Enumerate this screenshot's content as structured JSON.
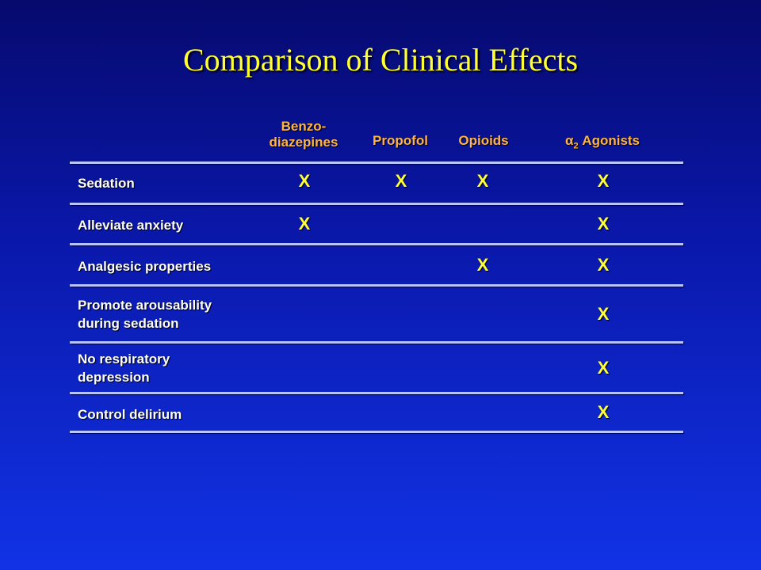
{
  "slide": {
    "title": "Comparison of Clinical Effects"
  },
  "columns": [
    {
      "lines": [
        "Benzo-",
        "diazepines"
      ]
    },
    {
      "lines": [
        "Propofol"
      ]
    },
    {
      "lines": [
        "Opioids"
      ]
    },
    {
      "symbol": "α",
      "subscript": "2",
      "suffix": " Agonists"
    }
  ],
  "rows": [
    {
      "lines": [
        "Sedation"
      ],
      "mark": "X",
      "checks": [
        true,
        true,
        true,
        true
      ]
    },
    {
      "lines": [
        "Alleviate anxiety"
      ],
      "mark": "X",
      "checks": [
        true,
        false,
        false,
        true
      ]
    },
    {
      "lines": [
        "Analgesic properties"
      ],
      "mark": "X",
      "checks": [
        false,
        false,
        true,
        true
      ]
    },
    {
      "lines": [
        "Promote arousability",
        "during sedation"
      ],
      "mark": "X",
      "checks": [
        false,
        false,
        false,
        true
      ]
    },
    {
      "lines": [
        "No respiratory",
        "depression"
      ],
      "mark": "X",
      "checks": [
        false,
        false,
        false,
        true
      ]
    },
    {
      "lines": [
        "Control delirium"
      ],
      "mark": "X",
      "checks": [
        false,
        false,
        false,
        true
      ]
    }
  ],
  "colors": {
    "title": "#ffff33",
    "header": "#ffb347",
    "label": "#ffffff",
    "mark": "#ffff33",
    "rule": "#b8c8ff"
  }
}
